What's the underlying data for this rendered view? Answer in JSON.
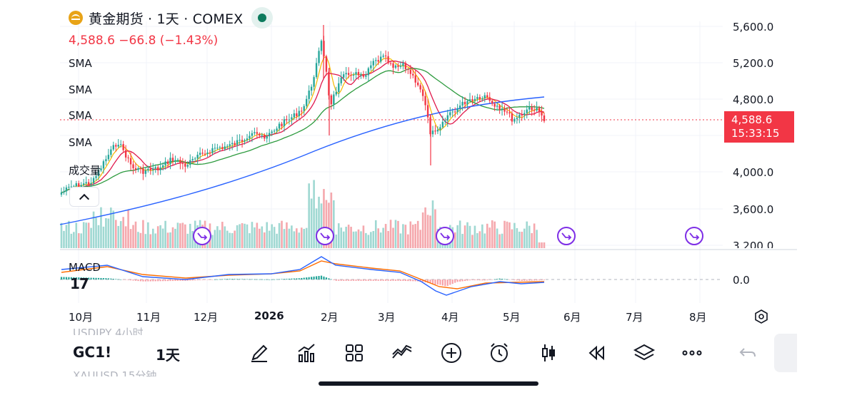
{
  "header": {
    "title": "黄金期货 · 1天 · COMEX",
    "quote": "4,588.6  −66.8 (−1.43%)"
  },
  "indicators": [
    "SMA",
    "SMA",
    "SMA",
    "SMA",
    "成交量"
  ],
  "macd_label": "MACD",
  "tv_logo": "17",
  "price_axis": [
    "5,600.0",
    "5,200.0",
    "4,800.0",
    "4,000.0",
    "3,600.0",
    "3,200.0"
  ],
  "macd_axis": "0.0",
  "last_price": {
    "price": "4,588.6",
    "countdown": "15:33:15"
  },
  "time_axis": [
    "10月",
    "11月",
    "12月",
    "2026",
    "2月",
    "3月",
    "4月",
    "5月",
    "6月",
    "7月",
    "8月"
  ],
  "colors": {
    "up": "#26a69a",
    "down": "#f23645",
    "sma_fast": "#f5b800",
    "sma_mid": "#e0194c",
    "sma_slow": "#2e9b3f",
    "sma_long": "#2962ff",
    "macd_line": "#2962ff",
    "signal_line": "#ff6d00",
    "event_marker": "#7e2ee6"
  },
  "faded_rows": {
    "row1": "USDJPY  4小时",
    "row2": "XAUUSD  15分钟"
  },
  "toolbar": {
    "symbol": "GC1!",
    "interval": "1天",
    "tools": [
      "pen-icon",
      "indicators-icon",
      "grid-icon",
      "compare-icon",
      "plus-circle-icon",
      "alarm-icon",
      "candle-icon",
      "replay-icon",
      "layers-icon",
      "more-icon"
    ]
  }
}
